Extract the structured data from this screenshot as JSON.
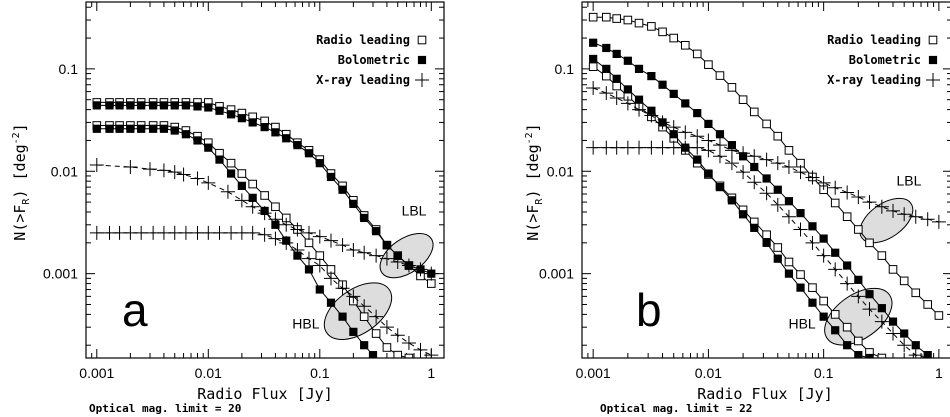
{
  "chart_data": [
    {
      "type": "line",
      "panel_letter": "a",
      "xlabel": "Radio Flux [Jy]",
      "ylabel": "N(>F_R) [deg^-2]",
      "x_scale": "log",
      "y_scale": "log",
      "xlim": [
        0.0008,
        1.3
      ],
      "ylim": [
        0.00015,
        0.45
      ],
      "x_ticks": [
        {
          "value": 0.001,
          "label": "0.001"
        },
        {
          "value": 0.01,
          "label": "0.01"
        },
        {
          "value": 0.1,
          "label": "0.1"
        },
        {
          "value": 1,
          "label": "1"
        }
      ],
      "y_ticks": [
        {
          "value": 0.001,
          "label": "0.001"
        },
        {
          "value": 0.01,
          "label": "0.01"
        },
        {
          "value": 0.1,
          "label": "0.1"
        }
      ],
      "legend_position": "top-right",
      "legend": [
        "Radio leading",
        "Bolometric",
        "X-ray leading"
      ],
      "footnote": "Optical mag. limit = 20",
      "series": [
        {
          "marker": "open-square",
          "line": "solid",
          "x": [
            0.001,
            0.0013,
            0.0016,
            0.002,
            0.0025,
            0.0032,
            0.004,
            0.005,
            0.0063,
            0.008,
            0.01,
            0.0126,
            0.016,
            0.02,
            0.025,
            0.032,
            0.04,
            0.05,
            0.063,
            0.08,
            0.1,
            0.126,
            0.16,
            0.2,
            0.25,
            0.32,
            0.4,
            0.5,
            0.63,
            0.8,
            1.0
          ],
          "y": [
            0.047,
            0.047,
            0.047,
            0.047,
            0.047,
            0.047,
            0.047,
            0.047,
            0.047,
            0.047,
            0.047,
            0.043,
            0.04,
            0.037,
            0.034,
            0.031,
            0.027,
            0.023,
            0.019,
            0.016,
            0.013,
            0.0095,
            0.0072,
            0.0052,
            0.0037,
            0.0027,
            0.0019,
            0.0015,
            0.0012,
            0.00095,
            0.0008
          ]
        },
        {
          "marker": "filled-square",
          "line": "solid",
          "x": [
            0.001,
            0.0013,
            0.0016,
            0.002,
            0.0025,
            0.0032,
            0.004,
            0.005,
            0.0063,
            0.008,
            0.01,
            0.0126,
            0.016,
            0.02,
            0.025,
            0.032,
            0.04,
            0.05,
            0.063,
            0.08,
            0.1,
            0.126,
            0.16,
            0.2,
            0.25,
            0.32,
            0.4,
            0.5,
            0.63,
            0.8,
            1.0
          ],
          "y": [
            0.044,
            0.044,
            0.044,
            0.044,
            0.044,
            0.044,
            0.044,
            0.044,
            0.044,
            0.043,
            0.042,
            0.039,
            0.036,
            0.033,
            0.03,
            0.027,
            0.024,
            0.021,
            0.018,
            0.015,
            0.012,
            0.0088,
            0.0066,
            0.0048,
            0.0035,
            0.0026,
            0.0019,
            0.0015,
            0.0012,
            0.0011,
            0.001
          ]
        },
        {
          "marker": "open-square",
          "line": "solid",
          "x": [
            0.001,
            0.0013,
            0.0016,
            0.002,
            0.0025,
            0.0032,
            0.004,
            0.005,
            0.0063,
            0.008,
            0.01,
            0.0126,
            0.016,
            0.02,
            0.025,
            0.032,
            0.04,
            0.05,
            0.063,
            0.08,
            0.1,
            0.126,
            0.16,
            0.2,
            0.25,
            0.32,
            0.4,
            0.5,
            0.63
          ],
          "y": [
            0.028,
            0.028,
            0.028,
            0.028,
            0.028,
            0.028,
            0.028,
            0.027,
            0.025,
            0.022,
            0.019,
            0.015,
            0.012,
            0.0095,
            0.0075,
            0.0058,
            0.0045,
            0.0035,
            0.0027,
            0.002,
            0.0015,
            0.0011,
            0.00078,
            0.00054,
            0.00038,
            0.00026,
            0.00019,
            0.00016,
            0.00015
          ]
        },
        {
          "marker": "filled-square",
          "line": "solid",
          "x": [
            0.001,
            0.0013,
            0.0016,
            0.002,
            0.0025,
            0.0032,
            0.004,
            0.005,
            0.0063,
            0.008,
            0.01,
            0.0126,
            0.016,
            0.02,
            0.025,
            0.032,
            0.04,
            0.05,
            0.063,
            0.08,
            0.1,
            0.126,
            0.16,
            0.2,
            0.25,
            0.3
          ],
          "y": [
            0.026,
            0.026,
            0.026,
            0.026,
            0.026,
            0.026,
            0.026,
            0.025,
            0.023,
            0.02,
            0.017,
            0.013,
            0.0095,
            0.0072,
            0.0055,
            0.0041,
            0.003,
            0.0021,
            0.0015,
            0.0011,
            0.0007,
            0.00052,
            0.00038,
            0.00027,
            0.0002,
            0.00016
          ]
        },
        {
          "marker": "plus",
          "line": "dashed",
          "x": [
            0.001,
            0.002,
            0.003,
            0.004,
            0.005,
            0.006,
            0.008,
            0.01,
            0.015,
            0.02,
            0.025,
            0.032,
            0.04,
            0.05,
            0.063,
            0.08,
            0.1,
            0.126,
            0.16,
            0.2,
            0.25,
            0.32,
            0.4,
            0.5,
            0.63,
            0.8,
            1.0
          ],
          "y": [
            0.0115,
            0.011,
            0.0105,
            0.0102,
            0.0098,
            0.0093,
            0.0085,
            0.0077,
            0.0063,
            0.0052,
            0.0045,
            0.0039,
            0.0034,
            0.003,
            0.0027,
            0.0025,
            0.0023,
            0.0021,
            0.0019,
            0.0017,
            0.0016,
            0.0015,
            0.0014,
            0.0013,
            0.0012,
            0.0011,
            0.001
          ]
        },
        {
          "marker": "plus",
          "line": "dashed",
          "x": [
            0.001,
            0.0013,
            0.0016,
            0.002,
            0.0025,
            0.0032,
            0.004,
            0.005,
            0.0063,
            0.008,
            0.01,
            0.0126,
            0.016,
            0.02,
            0.025,
            0.032,
            0.04,
            0.05,
            0.063,
            0.08,
            0.1,
            0.126,
            0.16,
            0.2,
            0.25,
            0.32,
            0.4,
            0.5,
            0.63,
            0.8,
            1.0
          ],
          "y": [
            0.0025,
            0.0025,
            0.0025,
            0.0025,
            0.0025,
            0.0025,
            0.0025,
            0.0025,
            0.0025,
            0.0025,
            0.0025,
            0.0025,
            0.0025,
            0.0025,
            0.0025,
            0.0024,
            0.0022,
            0.002,
            0.0017,
            0.0014,
            0.0012,
            0.0009,
            0.00072,
            0.0006,
            0.00048,
            0.00038,
            0.0003,
            0.00025,
            0.00021,
            0.00018,
            0.00016
          ]
        }
      ],
      "annotations": [
        {
          "text": "LBL",
          "ellipse_center": [
            0.6,
            0.0015
          ],
          "label_at": [
            0.7,
            0.0037
          ]
        },
        {
          "text": "HBL",
          "ellipse_center": [
            0.22,
            0.00043
          ],
          "label_at": [
            0.075,
            0.00029
          ]
        }
      ]
    },
    {
      "type": "line",
      "panel_letter": "b",
      "xlabel": "Radio Flux [Jy]",
      "ylabel": "N(>F_R) [deg^-2]",
      "x_scale": "log",
      "y_scale": "log",
      "xlim": [
        0.0008,
        1.3
      ],
      "ylim": [
        0.00015,
        0.45
      ],
      "x_ticks": [
        {
          "value": 0.001,
          "label": "0.001"
        },
        {
          "value": 0.01,
          "label": "0.01"
        },
        {
          "value": 0.1,
          "label": "0.1"
        },
        {
          "value": 1,
          "label": "1"
        }
      ],
      "y_ticks": [
        {
          "value": 0.001,
          "label": "0.001"
        },
        {
          "value": 0.01,
          "label": "0.01"
        },
        {
          "value": 0.1,
          "label": "0.1"
        }
      ],
      "legend_position": "top-right",
      "legend": [
        "Radio leading",
        "Bolometric",
        "X-ray leading"
      ],
      "footnote": "Optical mag. limit = 22",
      "series": [
        {
          "marker": "open-square",
          "line": "solid",
          "x": [
            0.001,
            0.0013,
            0.0016,
            0.002,
            0.0025,
            0.0032,
            0.004,
            0.005,
            0.0063,
            0.008,
            0.01,
            0.0126,
            0.016,
            0.02,
            0.025,
            0.032,
            0.04,
            0.05,
            0.063,
            0.08,
            0.1,
            0.126,
            0.16,
            0.2,
            0.25,
            0.32,
            0.4,
            0.5,
            0.63,
            0.8,
            1.0
          ],
          "y": [
            0.32,
            0.32,
            0.31,
            0.3,
            0.28,
            0.26,
            0.23,
            0.2,
            0.17,
            0.14,
            0.11,
            0.086,
            0.066,
            0.05,
            0.038,
            0.029,
            0.022,
            0.016,
            0.012,
            0.0088,
            0.0066,
            0.0049,
            0.0036,
            0.0027,
            0.002,
            0.0015,
            0.0011,
            0.00085,
            0.00065,
            0.0005,
            0.00039
          ]
        },
        {
          "marker": "filled-square",
          "line": "solid",
          "x": [
            0.001,
            0.0013,
            0.0016,
            0.002,
            0.0025,
            0.0032,
            0.004,
            0.005,
            0.0063,
            0.008,
            0.01,
            0.0126,
            0.016,
            0.02,
            0.025,
            0.032,
            0.04,
            0.05,
            0.063,
            0.08,
            0.1,
            0.126,
            0.16,
            0.2,
            0.25,
            0.32,
            0.4,
            0.5,
            0.63,
            0.8,
            1.0
          ],
          "y": [
            0.18,
            0.16,
            0.14,
            0.12,
            0.1,
            0.085,
            0.07,
            0.057,
            0.046,
            0.037,
            0.029,
            0.023,
            0.018,
            0.014,
            0.011,
            0.0085,
            0.0066,
            0.0051,
            0.0039,
            0.0029,
            0.0022,
            0.0016,
            0.0012,
            0.00087,
            0.00063,
            0.00046,
            0.00034,
            0.00026,
            0.0002,
            0.00016,
            0.00013
          ]
        },
        {
          "marker": "open-square",
          "line": "solid",
          "x": [
            0.001,
            0.0013,
            0.0016,
            0.002,
            0.0025,
            0.0032,
            0.004,
            0.005,
            0.0063,
            0.008,
            0.01,
            0.0126,
            0.016,
            0.02,
            0.025,
            0.032,
            0.04,
            0.05,
            0.063,
            0.08,
            0.1,
            0.126,
            0.16,
            0.2,
            0.25,
            0.32
          ],
          "y": [
            0.105,
            0.085,
            0.068,
            0.054,
            0.043,
            0.034,
            0.027,
            0.021,
            0.016,
            0.012,
            0.0093,
            0.0072,
            0.0055,
            0.0042,
            0.0032,
            0.0024,
            0.0018,
            0.0013,
            0.00098,
            0.00073,
            0.00054,
            0.0004,
            0.0003,
            0.00022,
            0.00017,
            0.00015
          ]
        },
        {
          "marker": "filled-square",
          "line": "solid",
          "x": [
            0.001,
            0.0013,
            0.0016,
            0.002,
            0.0025,
            0.0032,
            0.004,
            0.005,
            0.0063,
            0.008,
            0.01,
            0.0126,
            0.016,
            0.02,
            0.025,
            0.032,
            0.04,
            0.05,
            0.063,
            0.08,
            0.1,
            0.126,
            0.16,
            0.2,
            0.25
          ],
          "y": [
            0.125,
            0.1,
            0.08,
            0.063,
            0.05,
            0.039,
            0.03,
            0.023,
            0.017,
            0.013,
            0.0095,
            0.007,
            0.0052,
            0.0038,
            0.0028,
            0.002,
            0.0014,
            0.001,
            0.00073,
            0.00052,
            0.00038,
            0.00028,
            0.0002,
            0.00016,
            0.00015
          ]
        },
        {
          "marker": "plus",
          "line": "dashed",
          "x": [
            0.001,
            0.0013,
            0.0016,
            0.002,
            0.0025,
            0.0032,
            0.004,
            0.005,
            0.0063,
            0.008,
            0.01,
            0.0126,
            0.016,
            0.02,
            0.025,
            0.032,
            0.04,
            0.05,
            0.063,
            0.08,
            0.1,
            0.126,
            0.16,
            0.2,
            0.25,
            0.32,
            0.4,
            0.5,
            0.63,
            0.8,
            1.0
          ],
          "y": [
            0.065,
            0.058,
            0.052,
            0.046,
            0.04,
            0.035,
            0.03,
            0.027,
            0.024,
            0.022,
            0.02,
            0.018,
            0.016,
            0.015,
            0.014,
            0.013,
            0.012,
            0.011,
            0.0098,
            0.0087,
            0.0077,
            0.0069,
            0.0062,
            0.0056,
            0.005,
            0.0045,
            0.0041,
            0.0038,
            0.0036,
            0.0034,
            0.0032
          ]
        },
        {
          "marker": "plus",
          "line": "dashed",
          "x": [
            0.001,
            0.0013,
            0.0016,
            0.002,
            0.0025,
            0.0032,
            0.004,
            0.005,
            0.0063,
            0.008,
            0.01,
            0.0126,
            0.016,
            0.02,
            0.025,
            0.032,
            0.04,
            0.05,
            0.063,
            0.08,
            0.1,
            0.126,
            0.16,
            0.2,
            0.25,
            0.32,
            0.4,
            0.5,
            0.63,
            0.8
          ],
          "y": [
            0.017,
            0.017,
            0.017,
            0.017,
            0.017,
            0.017,
            0.017,
            0.017,
            0.017,
            0.017,
            0.016,
            0.014,
            0.012,
            0.0098,
            0.0078,
            0.0061,
            0.0047,
            0.0036,
            0.0027,
            0.002,
            0.0015,
            0.0011,
            0.0008,
            0.0006,
            0.00045,
            0.00034,
            0.00026,
            0.0002,
            0.00016,
            0.00015
          ]
        }
      ],
      "annotations": [
        {
          "text": "LBL",
          "ellipse_center": [
            0.35,
            0.0033
          ],
          "label_at": [
            0.55,
            0.0073
          ]
        },
        {
          "text": "HBL",
          "ellipse_center": [
            0.2,
            0.00038
          ],
          "label_at": [
            0.065,
            0.00029
          ]
        }
      ]
    }
  ]
}
